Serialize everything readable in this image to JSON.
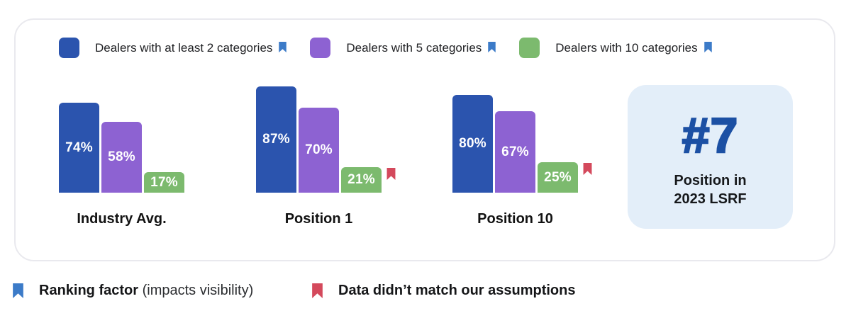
{
  "colors": {
    "series_blue": "#2B54AE",
    "series_purple": "#8D62D2",
    "series_green": "#7CBA6E",
    "flag_blue": "#3C7BC8",
    "flag_red": "#D4495C",
    "rank_blue": "#1C50A4",
    "rank_card_bg": "#E3EEF9",
    "panel_border": "#E9E9EE"
  },
  "chart_data": {
    "type": "bar",
    "title": "",
    "categories": [
      "Industry Avg.",
      "Position 1",
      "Position 10"
    ],
    "series": [
      {
        "name": "Dealers with at least 2 categories",
        "color": "#2B54AE",
        "values": [
          74,
          87,
          80
        ],
        "ranking_factor": true,
        "flagged": [
          false,
          false,
          false
        ]
      },
      {
        "name": "Dealers with 5 categories",
        "color": "#8D62D2",
        "values": [
          58,
          70,
          67
        ],
        "ranking_factor": true,
        "flagged": [
          false,
          false,
          false
        ]
      },
      {
        "name": "Dealers with 10 categories",
        "color": "#7CBA6E",
        "values": [
          17,
          21,
          25
        ],
        "ranking_factor": true,
        "flagged": [
          false,
          true,
          true
        ]
      }
    ],
    "value_suffix": "%",
    "ylim": [
      0,
      100
    ],
    "grid": false,
    "legend_position": "top"
  },
  "rank_card": {
    "rank": "#7",
    "label_line1": "Position in",
    "label_line2": "2023 LSRF"
  },
  "footnotes": [
    {
      "icon": "bookmark-blue",
      "bold": "Ranking factor",
      "normal": "(impacts visibility)"
    },
    {
      "icon": "bookmark-red",
      "bold": "Data didn’t match our assumptions",
      "normal": ""
    }
  ]
}
